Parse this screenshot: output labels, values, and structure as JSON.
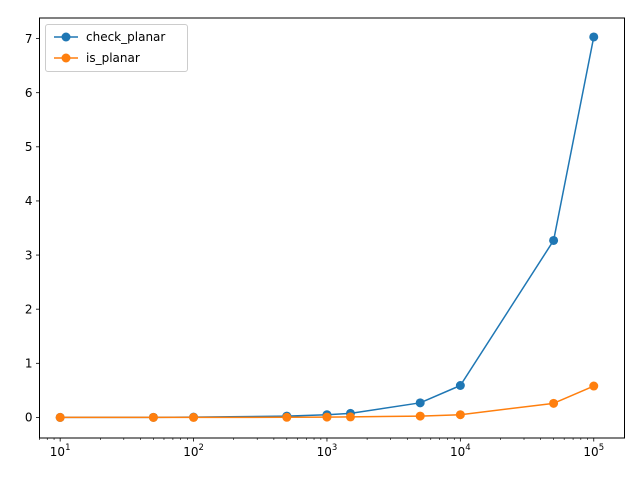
{
  "chart_data": {
    "type": "line",
    "xscale": "log",
    "x": [
      10,
      50,
      100,
      500,
      1000,
      1500,
      5000,
      10000,
      50000,
      100000
    ],
    "xlim": [
      7,
      170000
    ],
    "ylim": [
      -0.38,
      7.38
    ],
    "xticks": [
      {
        "value": 10,
        "base": "10",
        "exp": "1"
      },
      {
        "value": 100,
        "base": "10",
        "exp": "2"
      },
      {
        "value": 1000,
        "base": "10",
        "exp": "3"
      },
      {
        "value": 10000,
        "base": "10",
        "exp": "4"
      },
      {
        "value": 100000,
        "base": "10",
        "exp": "5"
      }
    ],
    "yticks": [
      {
        "value": 0,
        "label": "0"
      },
      {
        "value": 1,
        "label": "1"
      },
      {
        "value": 2,
        "label": "2"
      },
      {
        "value": 3,
        "label": "3"
      },
      {
        "value": 4,
        "label": "4"
      },
      {
        "value": 5,
        "label": "5"
      },
      {
        "value": 6,
        "label": "6"
      },
      {
        "value": 7,
        "label": "7"
      }
    ],
    "series": [
      {
        "name": "check_planar",
        "color": "#1f77b4",
        "values": [
          0.0,
          0.002,
          0.005,
          0.025,
          0.05,
          0.075,
          0.27,
          0.59,
          3.27,
          7.03
        ]
      },
      {
        "name": "is_planar",
        "color": "#ff7f0e",
        "values": [
          0.0,
          0.0,
          0.0,
          0.003,
          0.006,
          0.01,
          0.025,
          0.05,
          0.26,
          0.58
        ]
      }
    ],
    "grid": false,
    "legend": "top-left"
  }
}
